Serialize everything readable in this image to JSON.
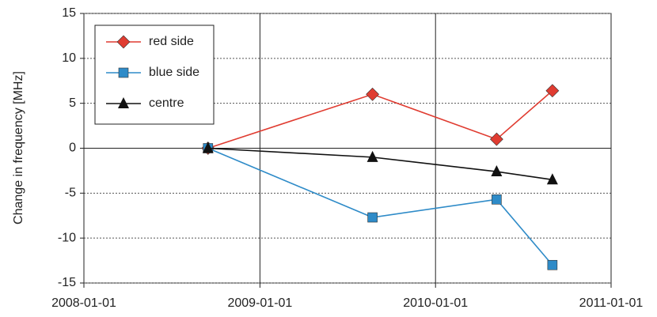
{
  "chart_data": {
    "type": "line",
    "y_label": "Change in frequency [MHz]",
    "x": [
      "2008-09-15",
      "2009-08-23",
      "2010-05-08",
      "2010-09-01"
    ],
    "xlim": [
      "2008-01-01",
      "2011-01-01"
    ],
    "xticks": [
      "2008-01-01",
      "2009-01-01",
      "2010-01-01",
      "2011-01-01"
    ],
    "ylim": [
      -15,
      15
    ],
    "yticks": [
      -15,
      -10,
      -5,
      0,
      5,
      10,
      15
    ],
    "grid": true,
    "legend": "upper-left",
    "series": [
      {
        "name": "red side",
        "color": "#e03c31",
        "marker": "diamond",
        "values": [
          0,
          6,
          1,
          6.4
        ]
      },
      {
        "name": "blue side",
        "color": "#2e8bc8",
        "marker": "square",
        "values": [
          0,
          -7.7,
          -5.7,
          -13
        ]
      },
      {
        "name": "centre",
        "color": "#111111",
        "marker": "triangle",
        "values": [
          0,
          -1,
          -2.6,
          -3.5
        ]
      }
    ]
  }
}
